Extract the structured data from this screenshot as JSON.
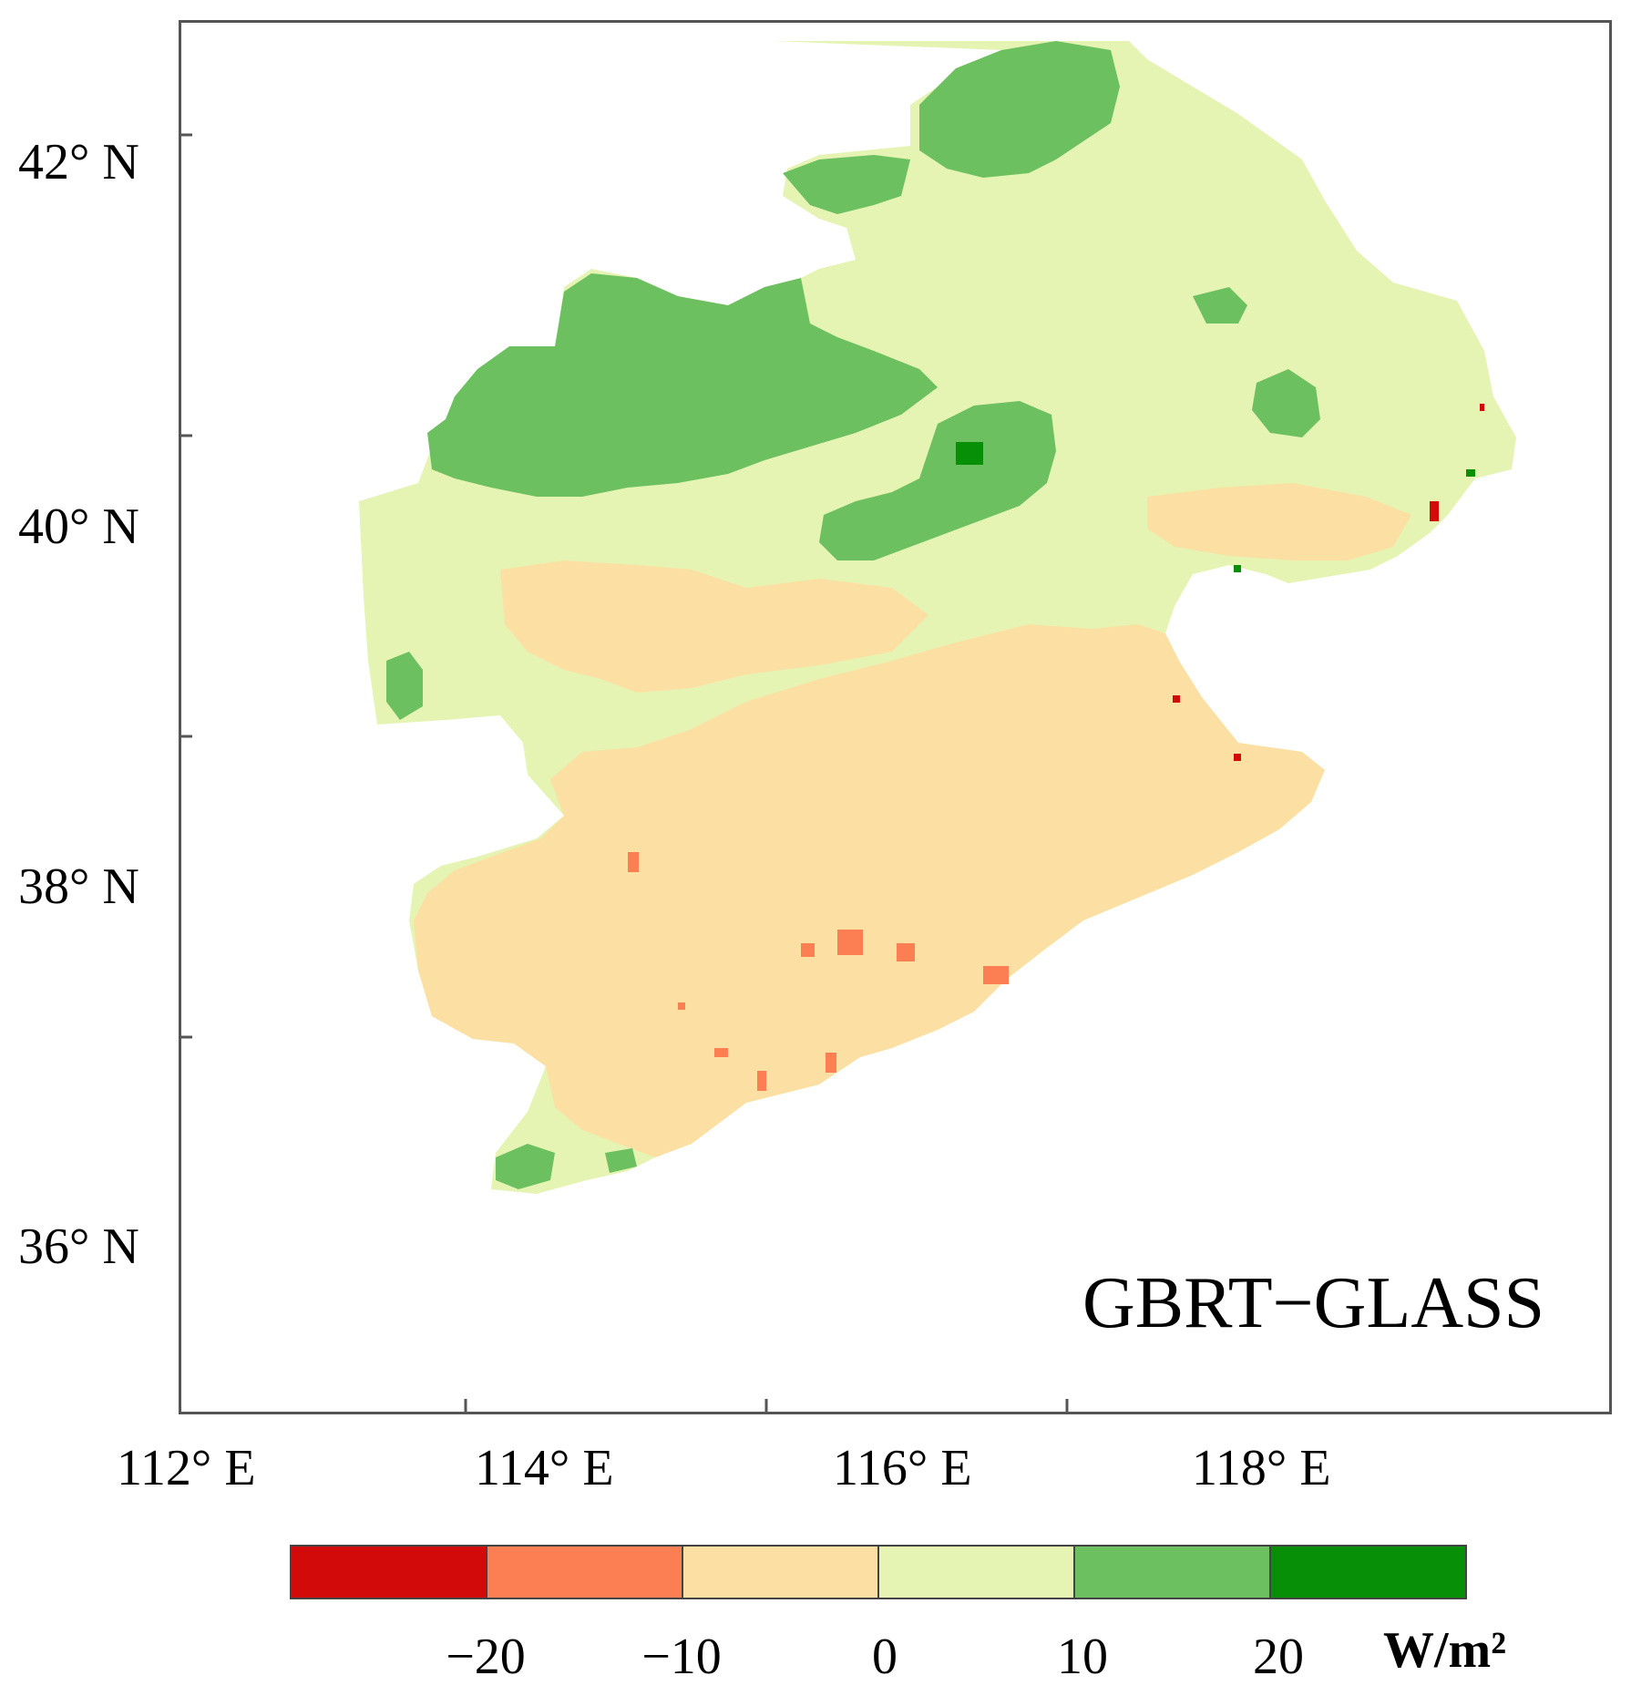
{
  "map": {
    "title": "GBRT−GLASS",
    "lat_ticks": [
      {
        "label": "42° N",
        "value": 42
      },
      {
        "label": "40° N",
        "value": 40
      },
      {
        "label": "38° N",
        "value": 38
      },
      {
        "label": "36° N",
        "value": 36
      }
    ],
    "lon_ticks": [
      {
        "label": "112° E",
        "value": 112
      },
      {
        "label": "114° E",
        "value": 114
      },
      {
        "label": "116° E",
        "value": 116
      },
      {
        "label": "118° E",
        "value": 118
      }
    ],
    "region_colors": {
      "neg20": "#d30a0a",
      "neg10_20": "#fb7f52",
      "neg0_10": "#fce0a3",
      "pos0_10": "#e5f3b3",
      "pos10_20": "#6cc060",
      "pos20": "#078f07"
    }
  },
  "colorbar": {
    "colors": [
      "#d30a0a",
      "#fb7f52",
      "#fce0a3",
      "#e5f3b3",
      "#6cc060",
      "#078f07"
    ],
    "tick_labels": [
      "−20",
      "−10",
      "0",
      "10",
      "20"
    ],
    "unit": "W/m²"
  }
}
